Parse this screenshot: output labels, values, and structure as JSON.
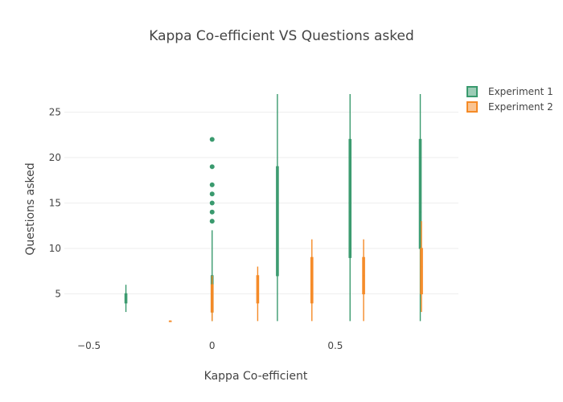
{
  "chart_data": {
    "type": "box",
    "title": "Kappa Co-efficient VS Questions asked",
    "xlabel": "Kappa Co-efficient",
    "ylabel": "Questions asked",
    "xlim": [
      -0.6,
      1.0
    ],
    "ylim": [
      1.5,
      28.5
    ],
    "xticks": [
      -0.5,
      0,
      0.5
    ],
    "xtick_labels": [
      "−0.5",
      "0",
      "0.5"
    ],
    "yticks": [
      5,
      10,
      15,
      20,
      25
    ],
    "ytick_labels": [
      "5",
      "10",
      "15",
      "20",
      "25"
    ],
    "grid": true,
    "legend_position": "top-right",
    "series": [
      {
        "name": "Experiment 1",
        "color": "#3a9a6e",
        "boxes": [
          {
            "x": -0.35,
            "min": 3,
            "q1": 4,
            "median": 5,
            "q3": 5,
            "max": 6,
            "outliers": []
          },
          {
            "x": 0.0,
            "min": 2,
            "q1": 3,
            "median": 4,
            "q3": 7,
            "max": 12,
            "outliers": [
              13,
              14,
              15,
              16,
              17,
              19,
              22
            ]
          },
          {
            "x": 0.265,
            "min": 2,
            "q1": 7,
            "median": 10,
            "q3": 19,
            "max": 27,
            "outliers": []
          },
          {
            "x": 0.56,
            "min": 2,
            "q1": 9,
            "median": 14,
            "q3": 22,
            "max": 27,
            "outliers": []
          },
          {
            "x": 0.845,
            "min": 2,
            "q1": 10,
            "median": 14,
            "q3": 22,
            "max": 27,
            "outliers": []
          }
        ]
      },
      {
        "name": "Experiment 2",
        "color": "#f58a26",
        "boxes": [
          {
            "x": -0.17,
            "min": 2,
            "q1": 2,
            "median": 2,
            "q3": 2,
            "max": 2,
            "outliers": []
          },
          {
            "x": 0.0,
            "min": 2,
            "q1": 3,
            "median": 5,
            "q3": 6,
            "max": 7,
            "outliers": []
          },
          {
            "x": 0.185,
            "min": 2,
            "q1": 4,
            "median": 5,
            "q3": 7,
            "max": 8,
            "outliers": []
          },
          {
            "x": 0.405,
            "min": 2,
            "q1": 4,
            "median": 6,
            "q3": 9,
            "max": 11,
            "outliers": []
          },
          {
            "x": 0.615,
            "min": 2,
            "q1": 5,
            "median": 7,
            "q3": 9,
            "max": 11,
            "outliers": []
          },
          {
            "x": 0.85,
            "min": 3,
            "q1": 5,
            "median": 8,
            "q3": 10,
            "max": 13,
            "outliers": []
          }
        ]
      }
    ]
  }
}
